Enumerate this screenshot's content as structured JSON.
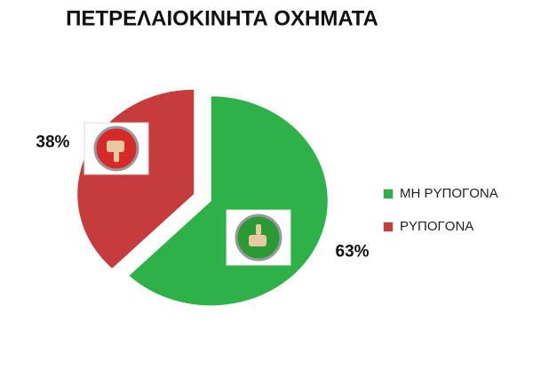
{
  "chart_data": {
    "type": "pie",
    "title": "ΠΕΤΡΕΛΑΙΟΚΙΝΗΤΑ ΟΧΗΜΑΤΑ",
    "categories": [
      "ΜΗ ΡΥΠΟΓΟΝΑ",
      "ΡΥΠΟΓΟΝΑ"
    ],
    "values": [
      63,
      38
    ],
    "value_labels": [
      "63%",
      "38%"
    ],
    "colors": [
      "#2fb14a",
      "#c63b3b"
    ],
    "legend": "right"
  }
}
